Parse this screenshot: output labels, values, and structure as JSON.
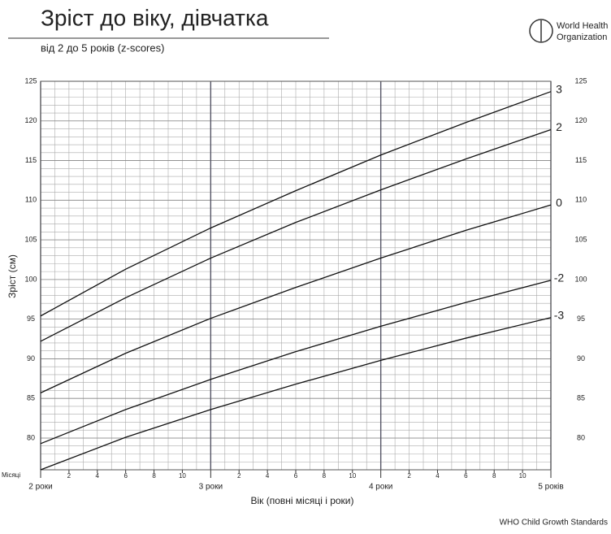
{
  "chart_data": {
    "type": "line",
    "title": "Зріст до віку, дівчатка",
    "subtitle": "від 2 до 5 років (z-scores)",
    "organization": [
      "World Health",
      "Organization"
    ],
    "source": "WHO Child Growth Standards",
    "y_label": "Зріст (см)",
    "x_label": "Вік (повні місяці і роки)",
    "month_axis_label": "Місяці",
    "x": [
      24,
      30,
      36,
      42,
      48,
      54,
      60
    ],
    "xlim": [
      24,
      60
    ],
    "xticks": [
      {
        "value": 24,
        "label": "2 роки"
      },
      {
        "value": 36,
        "label": "3 роки"
      },
      {
        "value": 48,
        "label": "4 роки"
      },
      {
        "value": 60,
        "label": "5 років"
      }
    ],
    "month_ticks": [
      {
        "value": 26,
        "label": "2"
      },
      {
        "value": 28,
        "label": "4"
      },
      {
        "value": 30,
        "label": "6"
      },
      {
        "value": 32,
        "label": "8"
      },
      {
        "value": 34,
        "label": "10"
      },
      {
        "value": 38,
        "label": "2"
      },
      {
        "value": 40,
        "label": "4"
      },
      {
        "value": 42,
        "label": "6"
      },
      {
        "value": 44,
        "label": "8"
      },
      {
        "value": 46,
        "label": "10"
      },
      {
        "value": 50,
        "label": "2"
      },
      {
        "value": 52,
        "label": "4"
      },
      {
        "value": 54,
        "label": "6"
      },
      {
        "value": 56,
        "label": "8"
      },
      {
        "value": 58,
        "label": "10"
      }
    ],
    "ylim": [
      76,
      125
    ],
    "yticks": [
      80,
      85,
      90,
      95,
      100,
      105,
      110,
      115,
      120,
      125
    ],
    "grid": true,
    "minor_grid": true,
    "series": [
      {
        "name": "3",
        "color": "#111111",
        "values": [
          95.4,
          101.3,
          106.5,
          111.2,
          115.7,
          119.8,
          123.7
        ]
      },
      {
        "name": "2",
        "color": "#111111",
        "values": [
          92.2,
          97.7,
          102.7,
          107.2,
          111.3,
          115.2,
          118.9
        ]
      },
      {
        "name": "0",
        "color": "#111111",
        "values": [
          85.7,
          90.7,
          95.1,
          99.0,
          102.7,
          106.2,
          109.4
        ]
      },
      {
        "name": "-2",
        "color": "#111111",
        "values": [
          79.3,
          83.6,
          87.4,
          90.9,
          94.1,
          97.1,
          99.9
        ]
      },
      {
        "name": "-3",
        "color": "#111111",
        "values": [
          76.0,
          80.1,
          83.6,
          86.8,
          89.8,
          92.6,
          95.2
        ]
      }
    ]
  }
}
